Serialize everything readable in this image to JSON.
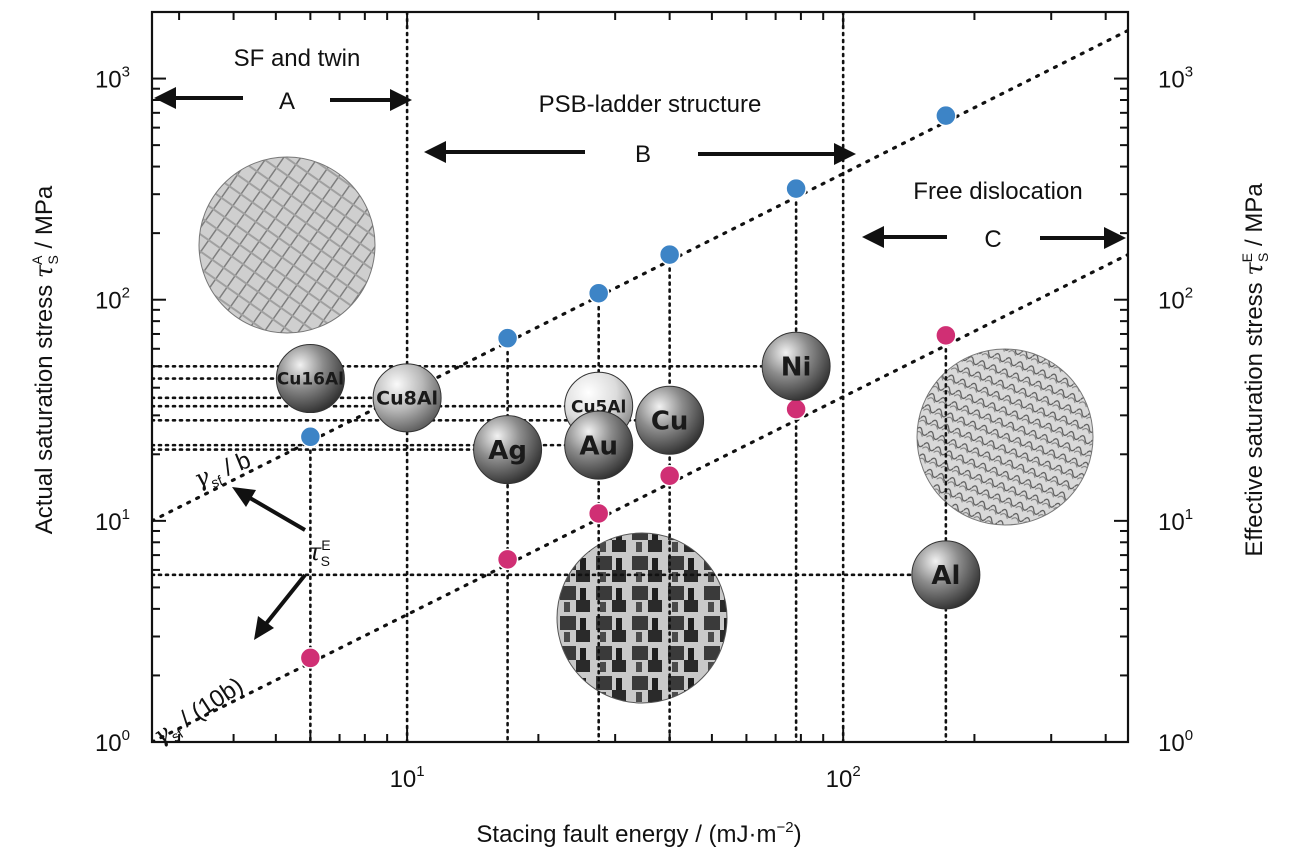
{
  "chart_data": {
    "type": "scatter",
    "xscale": "log",
    "yscale": "log",
    "xlim": [
      2.6,
      450
    ],
    "ylim": [
      1,
      2000
    ],
    "xlabel": "Stacing fault energy / (mJ·m",
    "xlabel_sup": "−2",
    "xlabel_end": ")",
    "ylabel_left_pre": "Actual saturation stress ",
    "ylabel_left_sym": "τ",
    "ylabel_left_sup": "A",
    "ylabel_left_sub": "S",
    "ylabel_left_post": " / MPa",
    "ylabel_right_pre": "Effective saturation stress ",
    "ylabel_right_sym": "τ",
    "ylabel_right_sup": "E",
    "ylabel_right_sub": "S",
    "ylabel_right_post": " / MPa",
    "x_ticks": [
      {
        "value": 10,
        "base": "10",
        "exp": "1"
      },
      {
        "value": 100,
        "base": "10",
        "exp": "2"
      }
    ],
    "y_ticks": [
      {
        "value": 1,
        "base": "10",
        "exp": "0"
      },
      {
        "value": 10,
        "base": "10",
        "exp": "1"
      },
      {
        "value": 100,
        "base": "10",
        "exp": "2"
      },
      {
        "value": 1000,
        "base": "10",
        "exp": "3"
      }
    ],
    "regions": [
      {
        "letter": "A",
        "name": "SF and twin",
        "x_range": [
          2.6,
          10
        ]
      },
      {
        "letter": "B",
        "name": "PSB-ladder structure",
        "x_range": [
          10,
          100
        ]
      },
      {
        "letter": "C",
        "name": "Free dislocation",
        "x_range": [
          100,
          450
        ]
      }
    ],
    "series": [
      {
        "key": "actual",
        "color": "#3d84c6",
        "points": [
          {
            "x": 6,
            "y": 24
          },
          {
            "x": 17,
            "y": 67
          },
          {
            "x": 27.5,
            "y": 107
          },
          {
            "x": 40,
            "y": 160
          },
          {
            "x": 78,
            "y": 318
          },
          {
            "x": 172,
            "y": 680
          }
        ]
      },
      {
        "key": "effective",
        "color": "#d02f74",
        "points": [
          {
            "x": 6,
            "y": 2.4
          },
          {
            "x": 17,
            "y": 6.7
          },
          {
            "x": 27.5,
            "y": 10.8
          },
          {
            "x": 40,
            "y": 16
          },
          {
            "x": 78,
            "y": 32
          },
          {
            "x": 172,
            "y": 69
          }
        ]
      }
    ],
    "fit_lines": [
      {
        "label_sym": "γ",
        "label_sub": "sf",
        "label_rest": " / b",
        "x1": 2.6,
        "y1": 10,
        "x2": 450,
        "y2": 1650
      },
      {
        "label_sym": "γ",
        "label_sub": "sf",
        "label_rest": " / (10b)",
        "x1": 2.6,
        "y1": 1,
        "x2": 450,
        "y2": 160
      }
    ],
    "annotation": {
      "sym": "τ",
      "sup": "E",
      "sub": "S"
    },
    "materials": [
      {
        "name": "Cu16Al",
        "x": 6,
        "y": 44,
        "shade": "dark",
        "size": 17
      },
      {
        "name": "Cu8Al",
        "x": 10,
        "y": 36,
        "shade": "mid",
        "size": 19
      },
      {
        "name": "Ag",
        "x": 17,
        "y": 21,
        "shade": "dark",
        "size": 26
      },
      {
        "name": "Cu5Al",
        "x": 27.5,
        "y": 33,
        "shade": "light",
        "size": 17
      },
      {
        "name": "Au",
        "x": 27.5,
        "y": 22,
        "shade": "dark",
        "size": 26
      },
      {
        "name": "Cu",
        "x": 40,
        "y": 28.5,
        "shade": "dark",
        "size": 26
      },
      {
        "name": "Ni",
        "x": 78,
        "y": 50,
        "shade": "dark",
        "size": 26
      },
      {
        "name": "Al",
        "x": 172,
        "y": 5.7,
        "shade": "dark",
        "size": 26
      }
    ]
  }
}
